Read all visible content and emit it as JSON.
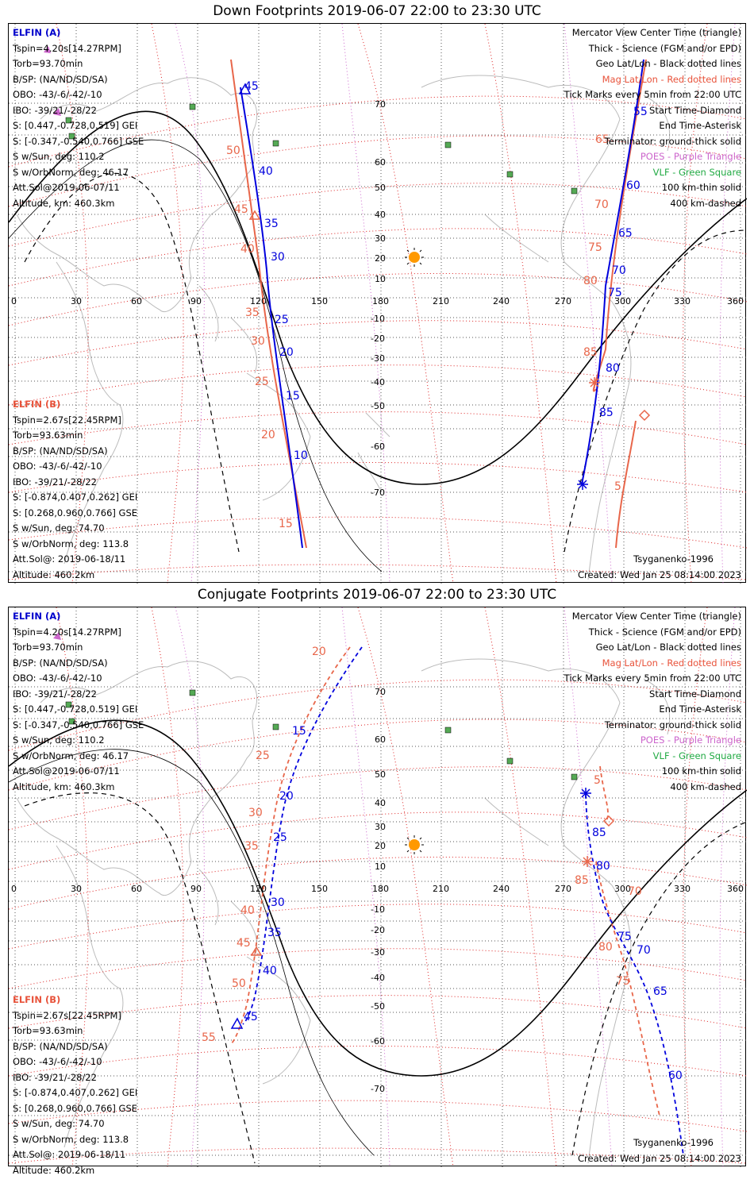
{
  "colors": {
    "elfin_a": "#0000dd",
    "elfin_b": "#e8664a",
    "geo_grid": "#555555",
    "mag_grid": "#dd2222",
    "poes": "#cc66cc",
    "vlf": "#55aa55",
    "sun": "#ff9900"
  },
  "map": {
    "lon_ticks": [
      "0",
      "30",
      "60",
      "90",
      "120",
      "150",
      "180",
      "210",
      "240",
      "270",
      "300",
      "330",
      "360"
    ],
    "lat_ticks": [
      "70",
      "60",
      "50",
      "40",
      "30",
      "20",
      "10",
      "-10",
      "-20",
      "-30",
      "-40",
      "-50",
      "-60",
      "-70"
    ]
  },
  "legend": [
    {
      "text": "Mercator View Center Time (triangle)",
      "color": "black"
    },
    {
      "text": "Thick - Science (FGM and/or EPD)",
      "color": "black"
    },
    {
      "text": "Geo Lat/Lon - Black dotted lines",
      "color": "black"
    },
    {
      "text": "Mag Lat/Lon - Red dotted lines",
      "color": "red"
    },
    {
      "text": "Tick Marks every 5min from 22:00 UTC",
      "color": "black"
    },
    {
      "text": "Start Time-Diamond",
      "color": "black"
    },
    {
      "text": "End Time-Asterisk",
      "color": "black"
    },
    {
      "text": "Terminator: ground-thick solid",
      "color": "black"
    },
    {
      "text": "POES - Purple Triangle",
      "color": "purple"
    },
    {
      "text": "VLF - Green Square",
      "color": "green"
    },
    {
      "text": "100 km-thin solid",
      "color": "black"
    },
    {
      "text": "400 km-dashed",
      "color": "black"
    }
  ],
  "elfin_a": {
    "name": "ELFIN (A)",
    "lines": [
      "Tspin=4.20s[14.27RPM]",
      "Torb=93.70min",
      "B/SP: (NA/ND/SD/SA)",
      "OBO: -43/-6/-42/-10",
      "IBO: -39/21/-28/22",
      "S: [0.447,-0.728,0.519] GEI",
      "S: [-0.347,-0.540,0.766] GSE",
      "S w/Sun, deg: 110.2",
      "S w/OrbNorm, deg: 46.17",
      "Att.Sol@2019-06-07/11",
      "Altitude, km: 460.3km"
    ]
  },
  "elfin_b": {
    "name": "ELFIN (B)",
    "lines": [
      "Tspin=2.67s[22.45RPM]",
      "Torb=93.63min",
      "B/SP: (NA/ND/SD/SA)",
      "OBO: -43/-6/-42/-10",
      "IBO: -39/21/-28/22",
      "S: [-0.874,0.407,0.262] GEI",
      "S: [0.268,0.960,0.766] GSE",
      "S w/Sun, deg: 74.70",
      "S w/OrbNorm, deg: 113.8",
      "Att.Sol@: 2019-06-18/11",
      "Altitude: 460.2km"
    ]
  },
  "model": "Tsyganenko-1996",
  "created": "Created: Wed Jan 25 08:14:00 2023",
  "panels": [
    {
      "title": "Down Footprints 2019-06-07 22:00 to 23:30 UTC",
      "track_a_left": {
        "labels": [
          "45",
          "40",
          "35",
          "30",
          "25",
          "20",
          "15",
          "10"
        ]
      },
      "track_b_left": {
        "labels": [
          "50",
          "45",
          "40",
          "35",
          "30",
          "25",
          "20",
          "15"
        ]
      },
      "track_a_right": {
        "labels": [
          "55",
          "60",
          "65",
          "70",
          "75",
          "80",
          "85"
        ]
      },
      "track_b_right": {
        "labels": [
          "65",
          "70",
          "75",
          "80",
          "85",
          "5"
        ]
      }
    },
    {
      "title": "Conjugate Footprints 2019-06-07 22:00 to 23:30 UTC",
      "track_a_left": {
        "labels": [
          "15",
          "20",
          "25",
          "30",
          "35",
          "40",
          "45"
        ]
      },
      "track_b_left": {
        "labels": [
          "20",
          "25",
          "30",
          "35",
          "40",
          "45",
          "50",
          "55"
        ]
      },
      "track_a_right": {
        "labels": [
          "85",
          "80",
          "75",
          "70",
          "65",
          "60"
        ]
      },
      "track_b_right": {
        "labels": [
          "5",
          "85",
          "80",
          "75",
          "70"
        ]
      }
    }
  ]
}
